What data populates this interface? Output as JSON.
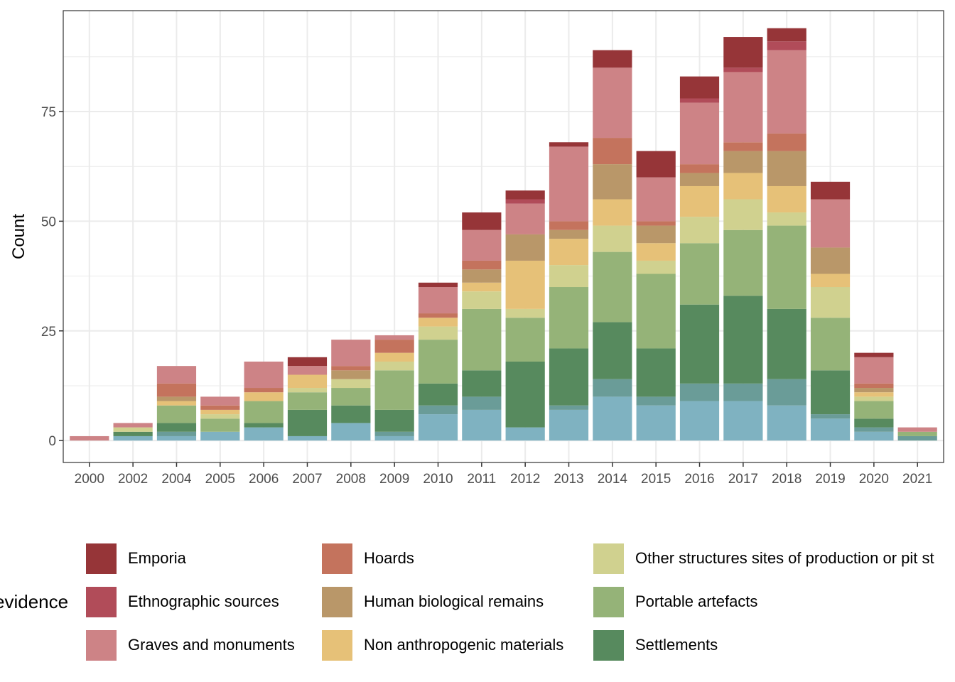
{
  "chart_data": {
    "type": "bar",
    "stacked": true,
    "title": "",
    "xlabel": "",
    "ylabel": "Count",
    "ylim": [
      -5,
      98
    ],
    "yticks": [
      0,
      25,
      50,
      75
    ],
    "grid": true,
    "legend_title": "evidence",
    "legend_position": "bottom",
    "categories": [
      "2000",
      "2002",
      "2004",
      "2005",
      "2006",
      "2007",
      "2008",
      "2009",
      "2010",
      "2011",
      "2012",
      "2013",
      "2014",
      "2015",
      "2016",
      "2017",
      "2018",
      "2019",
      "2020",
      "2021"
    ],
    "series": [
      {
        "name": "",
        "color": "#7fb2c1",
        "in_legend": false,
        "values": [
          0,
          1,
          1,
          2,
          3,
          1,
          4,
          1,
          6,
          7,
          3,
          7,
          10,
          8,
          9,
          9,
          8,
          5,
          2,
          0
        ]
      },
      {
        "name": "",
        "color": "#6a9c98",
        "in_legend": false,
        "values": [
          0,
          0,
          1,
          0,
          0,
          0,
          0,
          1,
          2,
          3,
          0,
          1,
          4,
          2,
          4,
          4,
          6,
          1,
          1,
          1
        ]
      },
      {
        "name": "Settlements",
        "color": "#578a5e",
        "in_legend": true,
        "values": [
          0,
          1,
          2,
          0,
          1,
          6,
          4,
          5,
          5,
          6,
          15,
          13,
          13,
          11,
          18,
          20,
          16,
          10,
          2,
          0
        ]
      },
      {
        "name": "Portable artefacts",
        "color": "#95b378",
        "in_legend": true,
        "values": [
          0,
          0,
          4,
          3,
          5,
          4,
          4,
          9,
          10,
          14,
          10,
          14,
          16,
          17,
          14,
          15,
          19,
          12,
          4,
          1
        ]
      },
      {
        "name": "Other structures  sites of production or pit st",
        "color": "#d0d18f",
        "in_legend": true,
        "values": [
          0,
          1,
          0,
          1,
          0,
          1,
          2,
          2,
          3,
          4,
          2,
          5,
          6,
          3,
          6,
          7,
          3,
          7,
          1,
          0
        ]
      },
      {
        "name": "Non anthropogenic materials",
        "color": "#e6c178",
        "in_legend": true,
        "values": [
          0,
          0,
          1,
          1,
          2,
          3,
          0,
          2,
          2,
          2,
          11,
          6,
          6,
          4,
          7,
          6,
          6,
          3,
          1,
          0
        ]
      },
      {
        "name": "Human biological remains",
        "color": "#b99769",
        "in_legend": true,
        "values": [
          0,
          0,
          1,
          0,
          0,
          0,
          2,
          0,
          0,
          3,
          6,
          2,
          8,
          4,
          3,
          5,
          8,
          6,
          1,
          0
        ]
      },
      {
        "name": "Hoards",
        "color": "#c4735d",
        "in_legend": true,
        "values": [
          0,
          0,
          3,
          1,
          1,
          0,
          1,
          3,
          1,
          2,
          0,
          2,
          6,
          1,
          2,
          2,
          4,
          0,
          1,
          0
        ]
      },
      {
        "name": "Graves and monuments",
        "color": "#cd8386",
        "in_legend": true,
        "values": [
          1,
          1,
          4,
          2,
          6,
          2,
          6,
          1,
          6,
          7,
          7,
          17,
          16,
          10,
          14,
          16,
          19,
          11,
          6,
          1
        ]
      },
      {
        "name": "Ethnographic sources",
        "color": "#b14c59",
        "in_legend": true,
        "values": [
          0,
          0,
          0,
          0,
          0,
          0,
          0,
          0,
          0,
          0,
          1,
          0,
          0,
          0,
          1,
          1,
          2,
          0,
          0,
          0
        ]
      },
      {
        "name": "Emporia",
        "color": "#963538",
        "in_legend": true,
        "values": [
          0,
          0,
          0,
          0,
          0,
          2,
          0,
          0,
          1,
          4,
          2,
          1,
          4,
          6,
          5,
          7,
          3,
          4,
          1,
          0
        ]
      }
    ],
    "legend": [
      {
        "label": "Emporia",
        "color": "#963538"
      },
      {
        "label": "Ethnographic sources",
        "color": "#b14c59"
      },
      {
        "label": "Graves and monuments",
        "color": "#cd8386"
      },
      {
        "label": "Hoards",
        "color": "#c4735d"
      },
      {
        "label": "Human biological remains",
        "color": "#b99769"
      },
      {
        "label": "Non anthropogenic materials",
        "color": "#e6c178"
      },
      {
        "label": "Other structures  sites of production or pit st",
        "color": "#d0d18f"
      },
      {
        "label": "Portable artefacts",
        "color": "#95b378"
      },
      {
        "label": "Settlements",
        "color": "#578a5e"
      }
    ]
  }
}
